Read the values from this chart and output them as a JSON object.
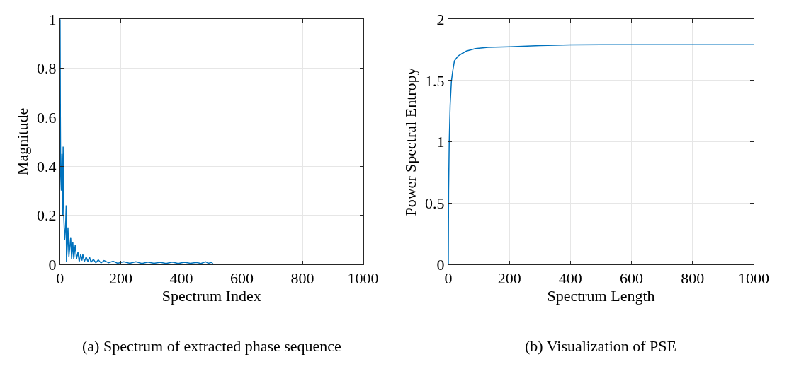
{
  "chart_data": [
    {
      "type": "line",
      "xlabel": "Spectrum Index",
      "ylabel": "Magnitude",
      "xlim": [
        0,
        1000
      ],
      "ylim": [
        0,
        1
      ],
      "xticks": [
        0,
        200,
        400,
        600,
        800,
        1000
      ],
      "yticks": [
        0,
        0.2,
        0.4,
        0.6,
        0.8,
        1
      ],
      "grid": true,
      "annotations": [
        "(a) Spectrum of extracted phase sequence"
      ],
      "series": [
        {
          "color": "#0072bd",
          "x": [
            0,
            1,
            2,
            4,
            6,
            8,
            10,
            12,
            15,
            18,
            20,
            21,
            24,
            26,
            29,
            32,
            35,
            38,
            42,
            45,
            50,
            54,
            59,
            63,
            68,
            72,
            75,
            80,
            86,
            92,
            97,
            102,
            110,
            118,
            126,
            135,
            145,
            160,
            175,
            190,
            210,
            230,
            250,
            270,
            290,
            310,
            330,
            350,
            370,
            390,
            410,
            430,
            450,
            465,
            480,
            490,
            500,
            505,
            600,
            800,
            1000
          ],
          "values": [
            1,
            0.6,
            0.36,
            0.3,
            0.45,
            0.2,
            0.48,
            0.2,
            0.1,
            0.15,
            0.24,
            0.01,
            0.08,
            0.15,
            0.03,
            0.07,
            0.11,
            0.02,
            0.09,
            0.02,
            0.08,
            0.02,
            0.05,
            0.01,
            0.04,
            0.015,
            0.04,
            0.01,
            0.03,
            0.01,
            0.03,
            0.008,
            0.02,
            0.006,
            0.018,
            0.005,
            0.015,
            0.006,
            0.012,
            0.004,
            0.01,
            0.004,
            0.01,
            0.003,
            0.009,
            0.004,
            0.008,
            0.003,
            0.009,
            0.003,
            0.008,
            0.004,
            0.007,
            0.003,
            0.01,
            0.004,
            0.008,
            0,
            0,
            0,
            0
          ]
        }
      ]
    },
    {
      "type": "line",
      "xlabel": "Spectrum Length",
      "ylabel": "Power Spectral Entropy",
      "xlim": [
        0,
        1000
      ],
      "ylim": [
        0,
        2
      ],
      "xticks": [
        0,
        200,
        400,
        600,
        800,
        1000
      ],
      "yticks": [
        0,
        0.5,
        1,
        1.5,
        2
      ],
      "grid": true,
      "annotations": [
        "(b) Visualization of PSE"
      ],
      "series": [
        {
          "color": "#0072bd",
          "x": [
            0,
            1,
            3,
            6,
            10,
            14,
            20,
            32,
            45,
            59,
            89,
            130,
            200,
            300,
            400,
            500,
            600,
            800,
            1000
          ],
          "values": [
            0,
            0.6,
            1.0,
            1.3,
            1.49,
            1.57,
            1.66,
            1.7,
            1.72,
            1.74,
            1.76,
            1.77,
            1.775,
            1.785,
            1.79,
            1.792,
            1.792,
            1.792,
            1.792
          ]
        }
      ]
    }
  ]
}
